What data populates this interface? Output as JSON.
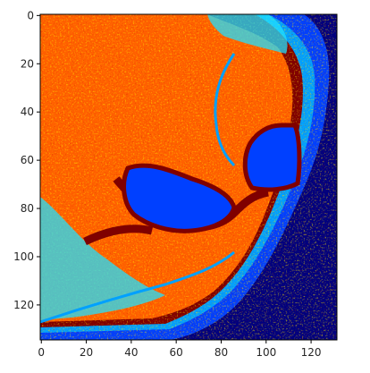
{
  "chart_data": {
    "type": "heatmap",
    "colormap": "jet",
    "title": "",
    "xlabel": "",
    "ylabel": "",
    "xlim": [
      -0.5,
      131.5
    ],
    "ylim": [
      134.5,
      -0.5
    ],
    "image_shape": {
      "rows": 135,
      "cols": 132
    },
    "x_ticks": [
      0,
      20,
      40,
      60,
      80,
      100,
      120
    ],
    "y_ticks": [
      0,
      20,
      40,
      60,
      80,
      100,
      120
    ],
    "palette": {
      "dark_red": "#7f0000",
      "red": "#ff2000",
      "orange_red": "#ff6000",
      "yellow": "#ffd500",
      "cyan": "#20e0ff",
      "sky": "#00a0ff",
      "blue": "#0040ff",
      "navy": "#00007f"
    }
  }
}
